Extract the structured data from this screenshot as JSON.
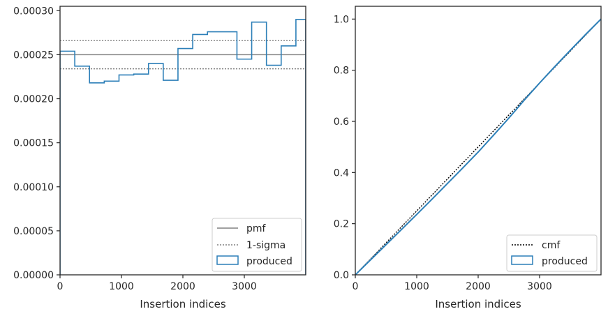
{
  "chart_data": [
    {
      "type": "line",
      "xlabel": "Insertion indices",
      "ylabel": "",
      "xlim": [
        0,
        4000
      ],
      "ylim": [
        0,
        0.000305
      ],
      "xticks": [
        0,
        1000,
        2000,
        3000
      ],
      "xtick_labels": [
        "0",
        "1000",
        "2000",
        "3000"
      ],
      "yticks": [
        0,
        5e-05,
        0.0001,
        0.00015,
        0.0002,
        0.00025,
        0.0003
      ],
      "ytick_labels": [
        "0.00000",
        "0.00005",
        "0.00010",
        "0.00015",
        "0.00020",
        "0.00025",
        "0.00030"
      ],
      "legend_position": "lower-right",
      "grid": false,
      "series": [
        {
          "name": "pmf",
          "kind": "hline",
          "y": 0.00025,
          "color": "#808080",
          "style": "solid"
        },
        {
          "name": "1-sigma",
          "kind": "hlines",
          "y": [
            0.000234,
            0.000266
          ],
          "color": "#808080",
          "style": "dotted"
        },
        {
          "name": "produced",
          "kind": "step-histogram",
          "color": "#2c7fb8",
          "bin_edges": [
            0,
            240,
            480,
            720,
            960,
            1200,
            1440,
            1680,
            1920,
            2160,
            2400,
            2640,
            2880,
            3120,
            3360,
            3600,
            3840,
            4000
          ],
          "values": [
            0.000254,
            0.000237,
            0.000218,
            0.00022,
            0.000227,
            0.000228,
            0.00024,
            0.000221,
            0.000257,
            0.000273,
            0.000276,
            0.000276,
            0.000245,
            0.000287,
            0.000238,
            0.00026,
            0.00029
          ]
        }
      ]
    },
    {
      "type": "line",
      "xlabel": "Insertion indices",
      "ylabel": "",
      "xlim": [
        0,
        4000
      ],
      "ylim": [
        0,
        1.05
      ],
      "xticks": [
        0,
        1000,
        2000,
        3000
      ],
      "xtick_labels": [
        "0",
        "1000",
        "2000",
        "3000"
      ],
      "yticks": [
        0,
        0.2,
        0.4,
        0.6,
        0.8,
        1.0
      ],
      "ytick_labels": [
        "0.0",
        "0.2",
        "0.4",
        "0.6",
        "0.8",
        "1.0"
      ],
      "legend_position": "lower-right",
      "grid": false,
      "series": [
        {
          "name": "cmf",
          "kind": "line",
          "color": "#000000",
          "style": "dotted",
          "x": [
            0,
            4000
          ],
          "y": [
            0,
            1.0
          ]
        },
        {
          "name": "produced",
          "kind": "cumulative-step",
          "color": "#2c7fb8",
          "x": [
            0,
            250,
            500,
            750,
            1000,
            1250,
            1500,
            1750,
            2000,
            2250,
            2500,
            2750,
            3000,
            3250,
            3500,
            3750,
            4000
          ],
          "y": [
            0,
            0.059,
            0.118,
            0.177,
            0.236,
            0.296,
            0.357,
            0.418,
            0.48,
            0.546,
            0.613,
            0.683,
            0.75,
            0.815,
            0.878,
            0.94,
            1.0
          ]
        }
      ]
    }
  ]
}
